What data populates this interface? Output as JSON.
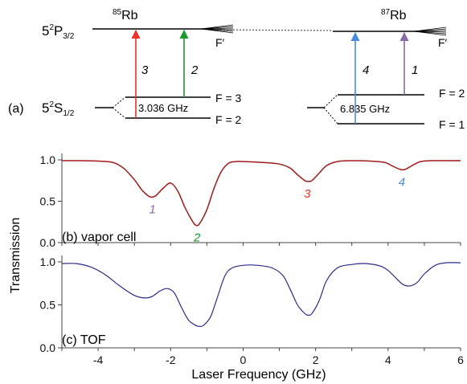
{
  "colors": {
    "red": "#e8322b",
    "green": "#1a9a28",
    "blue": "#4a8ae0",
    "purple": "#8a6aa8",
    "vapor_trace": "#a11a1a",
    "tof_trace": "#2b2b8c",
    "axis": "#444444"
  },
  "diagram": {
    "panel_label": "(a)",
    "rb85": {
      "mass": "85",
      "name": "Rb",
      "excited_split": "F′",
      "upper_label": "F = 3",
      "lower_label": "F = 2",
      "splitting": "3.036 GHz",
      "transitions": [
        {
          "label": "3",
          "color": "#e8322b"
        },
        {
          "label": "2",
          "color": "#1a9a28"
        }
      ]
    },
    "rb87": {
      "mass": "87",
      "name": "Rb",
      "excited_split": "F′",
      "upper_label": "F = 2",
      "lower_label": "F = 1",
      "splitting": "6.835 GHz",
      "transitions": [
        {
          "label": "4",
          "color": "#4a8ae0"
        },
        {
          "label": "1",
          "color": "#8a6aa8"
        }
      ]
    },
    "excited_state": {
      "prefix": "5",
      "sup": "2",
      "letter": "P",
      "sub": "3/2"
    },
    "ground_state": {
      "prefix": "5",
      "sup": "2",
      "letter": "S",
      "sub": "1/2"
    }
  },
  "chart_data": [
    {
      "type": "line",
      "panel_label": "(b) vapor cell",
      "ylabel": "Transmission",
      "xlim": [
        -5,
        6
      ],
      "ylim": [
        0,
        1.0
      ],
      "yticks": [
        "0.0",
        "0.5",
        "1.0"
      ],
      "peak_labels": [
        {
          "label": "1",
          "x": -2.5,
          "color": "#8a6aa8"
        },
        {
          "label": "2",
          "x": -1.27,
          "color": "#1a9a28"
        },
        {
          "label": "3",
          "x": 1.77,
          "color": "#e8322b"
        },
        {
          "label": "4",
          "x": 4.38,
          "color": "#4a8ae0"
        }
      ],
      "series": [
        {
          "x": [
            -5.0,
            -4.5,
            -4.0,
            -3.6,
            -3.3,
            -3.0,
            -2.8,
            -2.6,
            -2.5,
            -2.4,
            -2.2,
            -2.0,
            -1.8,
            -1.6,
            -1.4,
            -1.3,
            -1.2,
            -1.0,
            -0.8,
            -0.6,
            -0.4,
            -0.2,
            0.0,
            0.5,
            1.0,
            1.3,
            1.5,
            1.7,
            1.8,
            1.9,
            2.1,
            2.3,
            2.6,
            3.0,
            3.5,
            3.9,
            4.1,
            4.3,
            4.4,
            4.5,
            4.7,
            4.9,
            5.2,
            5.6,
            6.0
          ],
          "y": [
            0.99,
            0.99,
            0.985,
            0.97,
            0.9,
            0.76,
            0.64,
            0.56,
            0.55,
            0.57,
            0.66,
            0.72,
            0.62,
            0.42,
            0.26,
            0.21,
            0.23,
            0.4,
            0.66,
            0.86,
            0.96,
            0.98,
            0.98,
            0.97,
            0.95,
            0.9,
            0.82,
            0.75,
            0.74,
            0.75,
            0.84,
            0.93,
            0.98,
            0.99,
            0.985,
            0.97,
            0.93,
            0.89,
            0.88,
            0.89,
            0.94,
            0.98,
            0.99,
            0.99,
            0.99
          ]
        }
      ]
    },
    {
      "type": "line",
      "panel_label": "(c) TOF",
      "xlabel": "Laser Frequency (GHz)",
      "xlim": [
        -5,
        6
      ],
      "ylim": [
        0,
        1.0
      ],
      "xticks": [
        "-4",
        "-2",
        "0",
        "2",
        "4",
        "6"
      ],
      "yticks": [
        "0.0",
        "0.5",
        "1.0"
      ],
      "series": [
        {
          "x": [
            -5.0,
            -4.6,
            -4.2,
            -3.8,
            -3.4,
            -3.0,
            -2.7,
            -2.5,
            -2.3,
            -2.1,
            -1.9,
            -1.7,
            -1.5,
            -1.3,
            -1.2,
            -1.1,
            -0.9,
            -0.7,
            -0.5,
            -0.3,
            0.0,
            0.4,
            0.8,
            1.1,
            1.3,
            1.5,
            1.7,
            1.8,
            1.9,
            2.1,
            2.3,
            2.6,
            3.0,
            3.4,
            3.8,
            4.0,
            4.2,
            4.4,
            4.6,
            4.8,
            5.0,
            5.3,
            5.6,
            6.0
          ],
          "y": [
            0.98,
            0.98,
            0.94,
            0.85,
            0.72,
            0.61,
            0.58,
            0.6,
            0.66,
            0.69,
            0.64,
            0.47,
            0.32,
            0.26,
            0.25,
            0.26,
            0.36,
            0.6,
            0.84,
            0.93,
            0.96,
            0.96,
            0.93,
            0.84,
            0.68,
            0.5,
            0.4,
            0.38,
            0.4,
            0.55,
            0.78,
            0.93,
            0.97,
            0.98,
            0.95,
            0.9,
            0.82,
            0.74,
            0.72,
            0.76,
            0.86,
            0.96,
            0.99,
            0.99
          ]
        }
      ]
    }
  ]
}
